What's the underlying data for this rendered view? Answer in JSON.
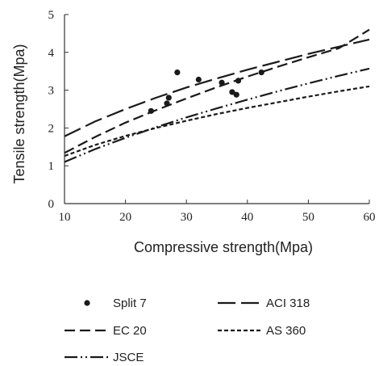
{
  "chart_data": {
    "type": "line",
    "xlabel": "Compressive strength(Mpa)",
    "ylabel": "Tensile strength(Mpa)",
    "xlim": [
      10,
      60
    ],
    "ylim": [
      0,
      5
    ],
    "x_ticks": [
      10,
      20,
      30,
      40,
      50,
      60
    ],
    "y_ticks": [
      0,
      1,
      2,
      3,
      4,
      5
    ],
    "grid": false,
    "legend_position": "bottom",
    "scatter": {
      "name": "Split 7",
      "points": [
        {
          "x": 24.2,
          "y": 2.45
        },
        {
          "x": 26.8,
          "y": 2.65
        },
        {
          "x": 27.1,
          "y": 2.8
        },
        {
          "x": 28.5,
          "y": 3.47
        },
        {
          "x": 32.0,
          "y": 3.28
        },
        {
          "x": 35.8,
          "y": 3.2
        },
        {
          "x": 37.5,
          "y": 2.95
        },
        {
          "x": 38.2,
          "y": 2.88
        },
        {
          "x": 38.5,
          "y": 3.25
        },
        {
          "x": 42.3,
          "y": 3.47
        }
      ]
    },
    "series": [
      {
        "name": "ACI 318",
        "style": "long-dash",
        "x": [
          10,
          15,
          20,
          25,
          30,
          35,
          40,
          45,
          50,
          55,
          60
        ],
        "y": [
          1.78,
          2.17,
          2.5,
          2.8,
          3.07,
          3.31,
          3.54,
          3.75,
          3.96,
          4.15,
          4.34
        ]
      },
      {
        "name": "EC 20",
        "style": "dash",
        "x": [
          10,
          15,
          20,
          25,
          30,
          35,
          40,
          45,
          50,
          55,
          60
        ],
        "y": [
          1.34,
          1.76,
          2.14,
          2.47,
          2.78,
          3.08,
          3.36,
          3.62,
          3.87,
          4.11,
          4.6
        ]
      },
      {
        "name": "AS 360",
        "style": "short-dash",
        "x": [
          10,
          15,
          20,
          25,
          30,
          35,
          40,
          45,
          50,
          55,
          60
        ],
        "y": [
          1.26,
          1.55,
          1.79,
          2.0,
          2.19,
          2.37,
          2.53,
          2.68,
          2.83,
          2.97,
          3.1
        ]
      },
      {
        "name": "JSCE",
        "style": "dash-dot-dot",
        "x": [
          10,
          15,
          20,
          25,
          30,
          35,
          40,
          45,
          50,
          55,
          60
        ],
        "y": [
          1.1,
          1.44,
          1.74,
          2.02,
          2.28,
          2.52,
          2.75,
          2.97,
          3.18,
          3.38,
          3.57
        ]
      }
    ],
    "legend": [
      {
        "label": "Split 7",
        "marker": "dot"
      },
      {
        "label": "ACI 318",
        "marker": "long-dash"
      },
      {
        "label": "EC 20",
        "marker": "dash"
      },
      {
        "label": "AS 360",
        "marker": "short-dash"
      },
      {
        "label": "JSCE",
        "marker": "dash-dot-dot"
      }
    ]
  },
  "colors": {
    "line": "#1a1a1a",
    "axis": "#333333"
  }
}
